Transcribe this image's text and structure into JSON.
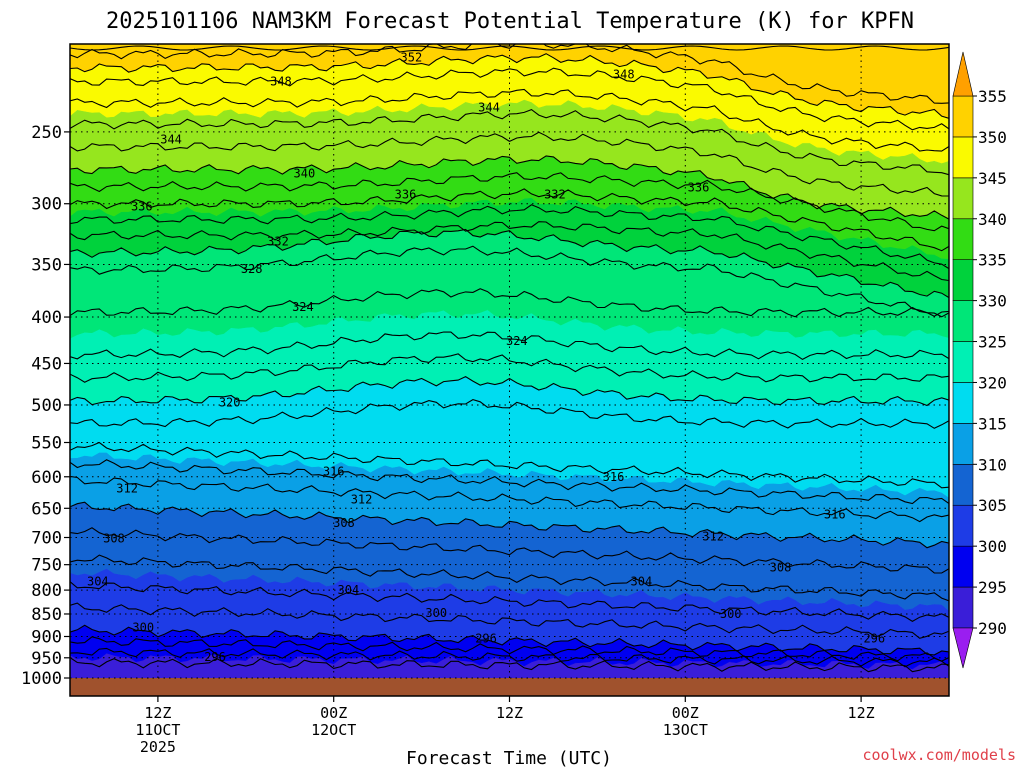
{
  "chart_data": {
    "type": "heatmap",
    "title": "2025101106 NAM3KM Forecast Potential Temperature (K) for KPFN",
    "xlabel": "Forecast Time (UTC)",
    "ylabel": "",
    "y_scale": "log-pressure",
    "ylim": [
      1000,
      200
    ],
    "y_ticks": [
      250,
      300,
      350,
      400,
      450,
      500,
      550,
      600,
      650,
      700,
      750,
      800,
      850,
      900,
      950,
      1000
    ],
    "xlim_hours": [
      0,
      60
    ],
    "x_ticks": [
      {
        "hour": 6,
        "lines": [
          "12Z",
          "11OCT",
          "2025"
        ]
      },
      {
        "hour": 18,
        "lines": [
          "00Z",
          "12OCT"
        ]
      },
      {
        "hour": 30,
        "lines": [
          "12Z"
        ]
      },
      {
        "hour": 42,
        "lines": [
          "00Z",
          "13OCT"
        ]
      },
      {
        "hour": 54,
        "lines": [
          "12Z"
        ]
      }
    ],
    "colorbar": {
      "levels": [
        290,
        295,
        300,
        305,
        310,
        315,
        320,
        325,
        330,
        335,
        340,
        345,
        350,
        355
      ],
      "colors": [
        "#9a1ef0",
        "#3a1ed8",
        "#0000f0",
        "#1e3ce6",
        "#1464d2",
        "#0aa0e6",
        "#00dcf0",
        "#00f0b4",
        "#00e678",
        "#00d23c",
        "#32dc14",
        "#96e61e",
        "#fafa00",
        "#ffd200",
        "#ffa000"
      ],
      "tick_labels": [
        "290",
        "295",
        "300",
        "305",
        "310",
        "315",
        "320",
        "325",
        "330",
        "335",
        "340",
        "345",
        "350",
        "355"
      ]
    },
    "contour_interval_K": 2,
    "isentrope_levels_hour0": [
      {
        "theta": 296,
        "pressure": 935
      },
      {
        "theta": 300,
        "pressure": 885
      },
      {
        "theta": 304,
        "pressure": 790
      },
      {
        "theta": 308,
        "pressure": 690
      },
      {
        "theta": 312,
        "pressure": 605
      },
      {
        "theta": 316,
        "pressure": 555
      },
      {
        "theta": 320,
        "pressure": 495
      },
      {
        "theta": 324,
        "pressure": 440
      },
      {
        "theta": 328,
        "pressure": 355
      },
      {
        "theta": 332,
        "pressure": 325
      },
      {
        "theta": 336,
        "pressure": 300
      },
      {
        "theta": 340,
        "pressure": 275
      },
      {
        "theta": 344,
        "pressure": 245
      },
      {
        "theta": 348,
        "pressure": 220
      },
      {
        "theta": 352,
        "pressure": 205
      }
    ],
    "contour_labels": [
      {
        "text": "352",
        "hour": 23.3,
        "pressure": 207
      },
      {
        "text": "348",
        "hour": 14.4,
        "pressure": 220
      },
      {
        "text": "348",
        "hour": 37.8,
        "pressure": 216
      },
      {
        "text": "344",
        "hour": 28.6,
        "pressure": 235
      },
      {
        "text": "344",
        "hour": 6.9,
        "pressure": 255
      },
      {
        "text": "340",
        "hour": 16.0,
        "pressure": 278
      },
      {
        "text": "336",
        "hour": 4.9,
        "pressure": 302
      },
      {
        "text": "336",
        "hour": 22.9,
        "pressure": 293
      },
      {
        "text": "332",
        "hour": 33.1,
        "pressure": 293
      },
      {
        "text": "336",
        "hour": 42.9,
        "pressure": 288
      },
      {
        "text": "332",
        "hour": 14.2,
        "pressure": 330
      },
      {
        "text": "328",
        "hour": 12.4,
        "pressure": 354
      },
      {
        "text": "324",
        "hour": 15.9,
        "pressure": 390
      },
      {
        "text": "324",
        "hour": 30.5,
        "pressure": 425
      },
      {
        "text": "320",
        "hour": 10.9,
        "pressure": 497
      },
      {
        "text": "316",
        "hour": 18.0,
        "pressure": 592
      },
      {
        "text": "316",
        "hour": 37.1,
        "pressure": 600
      },
      {
        "text": "316",
        "hour": 52.2,
        "pressure": 660
      },
      {
        "text": "312",
        "hour": 3.9,
        "pressure": 618
      },
      {
        "text": "312",
        "hour": 19.9,
        "pressure": 636
      },
      {
        "text": "312",
        "hour": 43.9,
        "pressure": 698
      },
      {
        "text": "308",
        "hour": 3.0,
        "pressure": 702
      },
      {
        "text": "308",
        "hour": 18.7,
        "pressure": 675
      },
      {
        "text": "308",
        "hour": 48.5,
        "pressure": 755
      },
      {
        "text": "304",
        "hour": 1.9,
        "pressure": 783
      },
      {
        "text": "304",
        "hour": 19.0,
        "pressure": 800
      },
      {
        "text": "304",
        "hour": 39.0,
        "pressure": 783
      },
      {
        "text": "300",
        "hour": 5.0,
        "pressure": 880
      },
      {
        "text": "300",
        "hour": 25.0,
        "pressure": 848
      },
      {
        "text": "300",
        "hour": 45.1,
        "pressure": 850
      },
      {
        "text": "296",
        "hour": 9.9,
        "pressure": 948
      },
      {
        "text": "296",
        "hour": 28.4,
        "pressure": 905
      },
      {
        "text": "296",
        "hour": 54.9,
        "pressure": 905
      }
    ]
  },
  "watermark": "coolwx.com/models"
}
